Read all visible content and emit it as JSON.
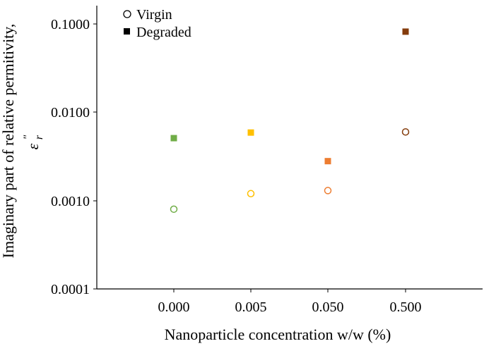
{
  "chart_data": {
    "type": "scatter",
    "title": "",
    "xlabel": "Nanoparticle concentration w/w (%)",
    "ylabel": "Imaginary part of relative permitivity,",
    "ylabel_symbol": "ε",
    "ylabel_symbol_sup": "\"",
    "ylabel_symbol_sub": "r",
    "categories": [
      "0.000",
      "0.005",
      "0.050",
      "0.500"
    ],
    "yscale": "log",
    "ylim": [
      0.0001,
      0.2
    ],
    "yticks": [
      {
        "value": 0.0001,
        "label": "0.0001"
      },
      {
        "value": 0.001,
        "label": "0.0010"
      },
      {
        "value": 0.01,
        "label": "0.0100"
      },
      {
        "value": 0.1,
        "label": "0.1000"
      }
    ],
    "grid": false,
    "legend_position": "top-left",
    "point_colors": [
      "#70ad47",
      "#ffc000",
      "#ed7d31",
      "#843c0c"
    ],
    "series": [
      {
        "name": "Virgin",
        "marker": "open-circle",
        "values": [
          0.0008,
          0.0012,
          0.0013,
          0.006
        ]
      },
      {
        "name": "Degraded",
        "marker": "filled-square",
        "values": [
          0.0051,
          0.0059,
          0.0028,
          0.082
        ]
      }
    ]
  }
}
